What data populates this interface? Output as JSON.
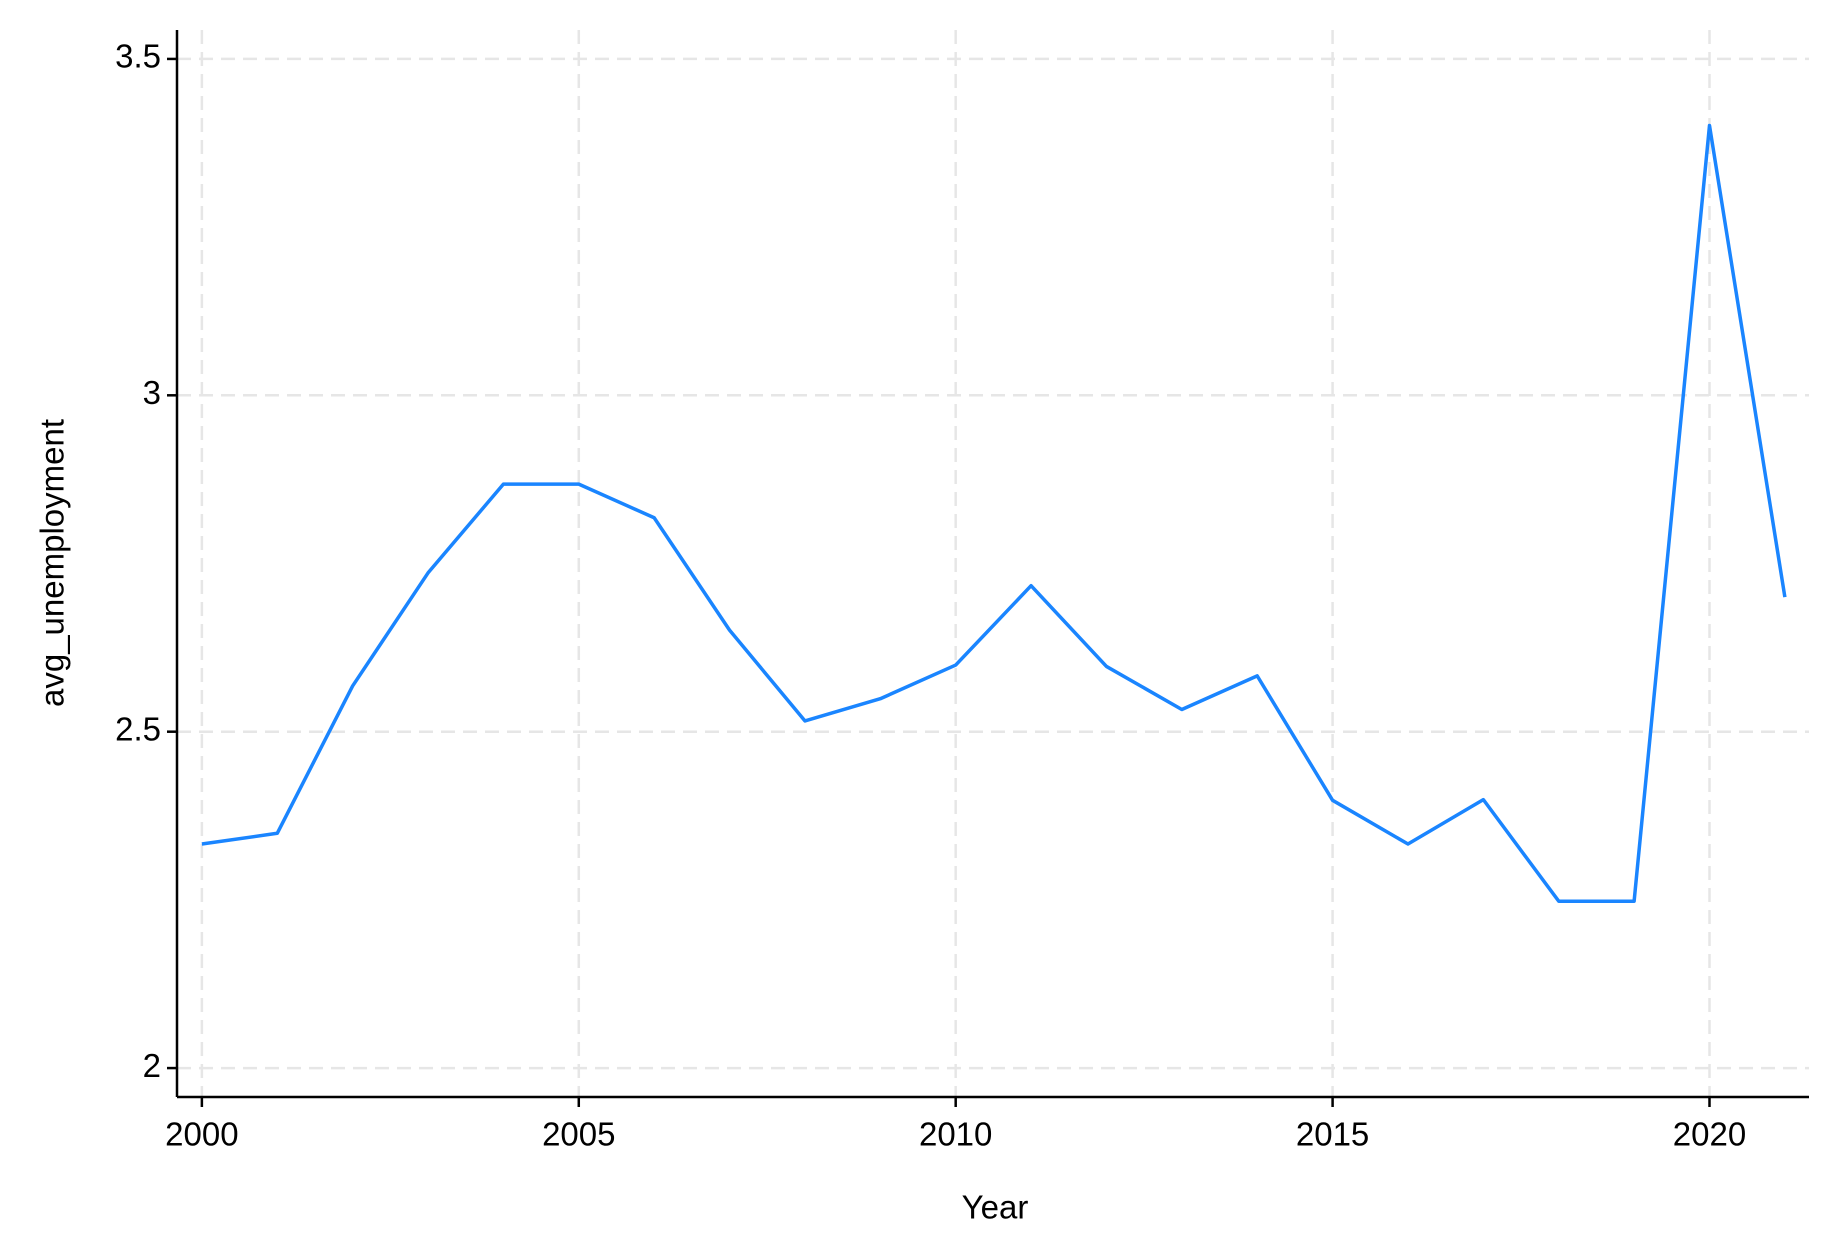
{
  "chart_data": {
    "type": "line",
    "x_label": "Year",
    "y_label": "avg_unemployment",
    "x": [
      2000,
      2001,
      2002,
      2003,
      2004,
      2005,
      2006,
      2007,
      2008,
      2009,
      2010,
      2011,
      2012,
      2013,
      2014,
      2015,
      2016,
      2017,
      2018,
      2019,
      2020,
      2021
    ],
    "series": [
      {
        "name": "avg_unemployment",
        "color": "#1a85ff",
        "values": [
          2.333,
          2.349,
          2.568,
          2.736,
          2.868,
          2.868,
          2.818,
          2.651,
          2.516,
          2.549,
          2.599,
          2.717,
          2.597,
          2.533,
          2.583,
          2.398,
          2.333,
          2.399,
          2.248,
          2.248,
          3.401,
          2.7
        ]
      }
    ],
    "xlim": [
      1999.67,
      2021.32
    ],
    "ylim": [
      1.957,
      3.543
    ],
    "xticks": [
      2000,
      2005,
      2010,
      2015,
      2020
    ],
    "yticks": [
      2,
      2.5,
      3,
      3.5
    ],
    "grid": true
  }
}
